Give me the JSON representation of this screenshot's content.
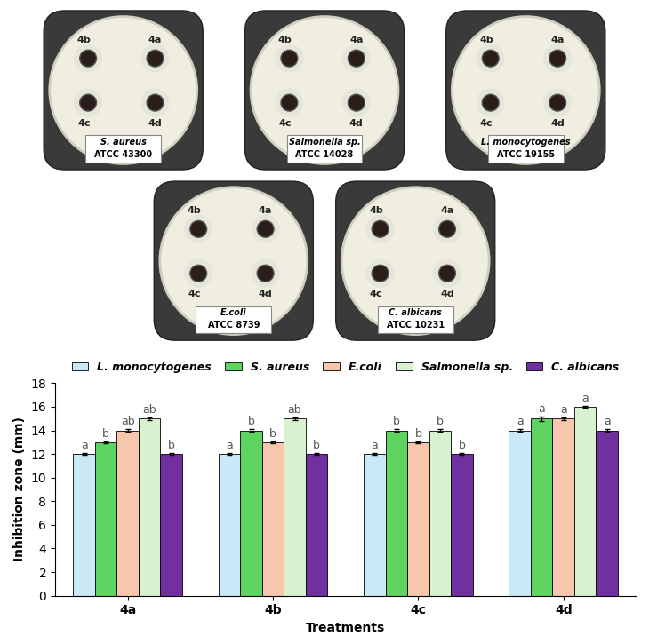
{
  "plates": [
    {
      "name": "S. aureus",
      "strain": "ATCC 43300"
    },
    {
      "name": "Salmonella sp.",
      "strain": "ATCC 14028"
    },
    {
      "name": "L. monocytogenes",
      "strain": "ATCC 19155"
    },
    {
      "name": "E.coli",
      "strain": "ATCC 8739"
    },
    {
      "name": "C. albicans",
      "strain": "ATCC 10231"
    }
  ],
  "wells": [
    "4a",
    "4b",
    "4c",
    "4d"
  ],
  "chart_data": {
    "type": "bar",
    "x_label": "Treatments",
    "y_label": "Inhibition zone (mm)",
    "categories": [
      "4a",
      "4b",
      "4c",
      "4d"
    ],
    "series": [
      {
        "name": "L. monocytogenes",
        "color": "#c9e9f6",
        "values": [
          12,
          12,
          12,
          14
        ],
        "errors": [
          0.1,
          0.1,
          0.1,
          0.1
        ],
        "letters": [
          "a",
          "a",
          "a",
          "a"
        ]
      },
      {
        "name": "S. aureus",
        "color": "#5fd35f",
        "values": [
          13,
          14,
          14,
          15
        ],
        "errors": [
          0.1,
          0.1,
          0.1,
          0.2
        ],
        "letters": [
          "b",
          "b",
          "b",
          "a"
        ]
      },
      {
        "name": "E.coli",
        "color": "#f7c7ad",
        "values": [
          14,
          13,
          13,
          15
        ],
        "errors": [
          0.1,
          0.1,
          0.1,
          0.1
        ],
        "letters": [
          "ab",
          "b",
          "b",
          "a"
        ]
      },
      {
        "name": "Salmonella sp.",
        "color": "#d8f2cf",
        "values": [
          15,
          15,
          14,
          16
        ],
        "errors": [
          0.1,
          0.1,
          0.1,
          0.1
        ],
        "letters": [
          "ab",
          "ab",
          "b",
          "a"
        ]
      },
      {
        "name": "C. albicans",
        "color": "#7030a0",
        "values": [
          12,
          12,
          12,
          14
        ],
        "errors": [
          0.1,
          0.1,
          0.1,
          0.1
        ],
        "letters": [
          "b",
          "b",
          "b",
          "a"
        ]
      }
    ],
    "ylim": [
      0,
      18
    ],
    "yticks": [
      0,
      2,
      4,
      6,
      8,
      10,
      12,
      14,
      16,
      18
    ],
    "legend": "top",
    "grid": false
  }
}
